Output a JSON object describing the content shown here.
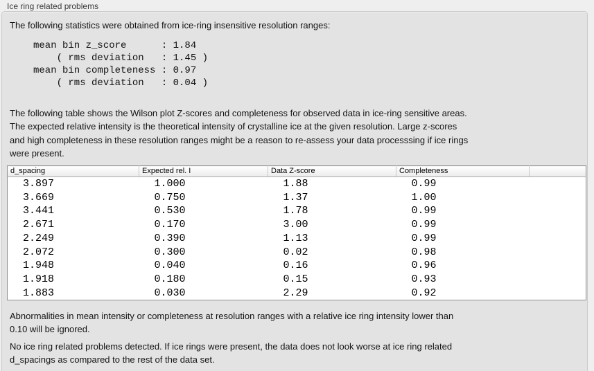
{
  "panel": {
    "title": "Ice ring related problems"
  },
  "intro": {
    "text": "The following statistics were obtained from ice-ring insensitive resolution ranges:"
  },
  "stats": {
    "text": "mean bin z_score      : 1.84\n    ( rms deviation   : 1.45 )\nmean bin completeness : 0.97\n    ( rms deviation   : 0.04 )"
  },
  "description": {
    "text": "The following table shows the Wilson plot Z-scores and completeness for observed data in ice-ring sensitive areas.\nThe expected relative intensity is the theoretical intensity of crystalline ice at the given resolution. Large z-scores\nand high completeness in these resolution ranges might be a reason to re-assess your data processsing if ice rings\nwere present."
  },
  "table": {
    "columns": [
      "d_spacing",
      "Expected rel. I",
      "Data Z-score",
      "Completeness"
    ],
    "rows": [
      [
        "3.897",
        "1.000",
        "1.88",
        "0.99"
      ],
      [
        "3.669",
        "0.750",
        "1.37",
        "1.00"
      ],
      [
        "3.441",
        "0.530",
        "1.78",
        "0.99"
      ],
      [
        "2.671",
        "0.170",
        "3.00",
        "0.99"
      ],
      [
        "2.249",
        "0.390",
        "1.13",
        "0.99"
      ],
      [
        "2.072",
        "0.300",
        "0.02",
        "0.98"
      ],
      [
        "1.948",
        "0.040",
        "0.16",
        "0.96"
      ],
      [
        "1.918",
        "0.180",
        "0.15",
        "0.93"
      ],
      [
        "1.883",
        "0.030",
        "2.29",
        "0.92"
      ]
    ]
  },
  "notes": {
    "ignore": {
      "text": "Abnormalities in mean intensity or completeness at resolution ranges with a relative ice ring intensity lower than\n0.10 will be ignored."
    },
    "result": {
      "text": "No ice ring related problems detected. If ice rings were present, the data does not look worse at ice ring related\nd_spacings as compared to the rest of the data set."
    }
  },
  "colors": {
    "outer_bg": "#efefef",
    "panel_bg": "#e3e3e3",
    "panel_border": "#c9c9c9",
    "table_border": "#8f8f8f",
    "header_gradient_top": "#ffffff",
    "header_gradient_bottom": "#ebebeb"
  }
}
